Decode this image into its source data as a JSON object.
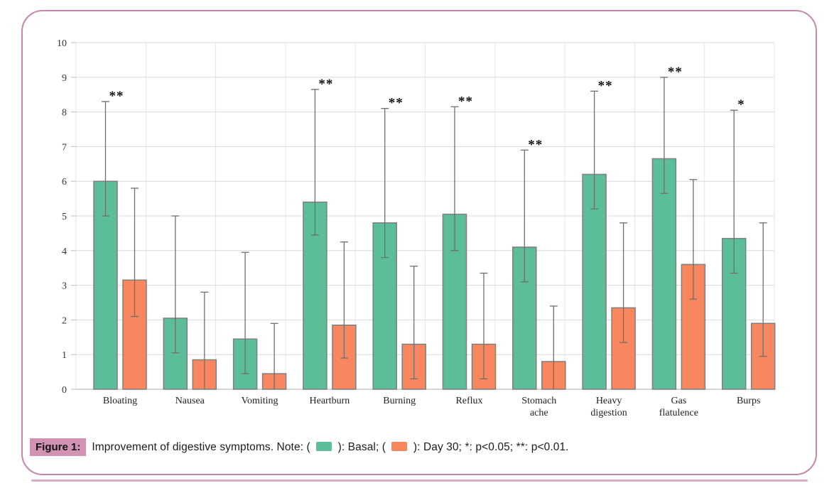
{
  "figure_caption": {
    "label": "Figure 1:",
    "text_before_basal_swatch": "Improvement of digestive symptoms. Note: (",
    "text_between_swatches": "): Basal; (",
    "text_after_day30_swatch": "): Day 30; *: p<0.05; **: p<0.01."
  },
  "chart_data": {
    "type": "bar",
    "categories": [
      "Bloating",
      "Nausea",
      "Vomiting",
      "Heartburn",
      "Burning",
      "Reflux",
      "Stomach\nache",
      "Heavy\ndigestion",
      "Gas\nflatulence",
      "Burps"
    ],
    "series": [
      {
        "name": "Basal",
        "color": "#5CBD99",
        "values": [
          6.0,
          2.05,
          1.45,
          5.4,
          4.8,
          5.05,
          4.1,
          6.2,
          6.65,
          4.35
        ],
        "err_low": [
          5.0,
          1.05,
          0.45,
          4.45,
          3.8,
          4.0,
          3.1,
          5.2,
          5.65,
          3.35
        ],
        "err_high": [
          8.3,
          5.0,
          3.95,
          8.65,
          8.1,
          8.15,
          6.9,
          8.6,
          9.0,
          8.05
        ]
      },
      {
        "name": "Day 30",
        "color": "#F8875F",
        "values": [
          3.15,
          0.85,
          0.45,
          1.85,
          1.3,
          1.3,
          0.8,
          2.35,
          3.6,
          1.9
        ],
        "err_low": [
          2.1,
          0,
          0,
          0.9,
          0.3,
          0.3,
          0,
          1.35,
          2.6,
          0.95
        ],
        "err_high": [
          5.8,
          2.8,
          1.9,
          4.25,
          3.55,
          3.35,
          2.4,
          4.8,
          6.05,
          4.8
        ]
      }
    ],
    "significance": [
      "**",
      "",
      "",
      "**",
      "**",
      "**",
      "**",
      "**",
      "**",
      "*"
    ],
    "ylim": [
      0,
      10
    ],
    "yticks": [
      0,
      1,
      2,
      3,
      4,
      5,
      6,
      7,
      8,
      9,
      10
    ],
    "grid": true,
    "legend_position": "in-caption"
  },
  "colors": {
    "basal": "#5CBD99",
    "day30": "#F8875F",
    "bar_stroke": "#7F7F7F",
    "error_bar": "#6F6F6F",
    "gridline": "#D9D9D9",
    "v_gridline": "#E6E6E6",
    "axis_line": "#BDBDBD",
    "tick_label": "#333333",
    "category_label": "#222222",
    "significance": "#111111",
    "frame_border": "#C687AF",
    "figure_label_bg": "#D192B4"
  }
}
